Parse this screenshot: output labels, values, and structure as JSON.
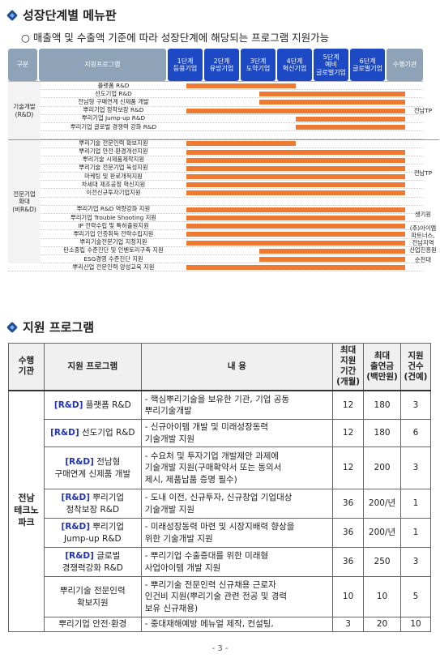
{
  "section1": {
    "title": "성장단계별 메뉴판",
    "subtitle": "○ 매출액 및 수출액 기준에 따라 성장단계에 해당되는 프로그램 지원가능"
  },
  "stage_table": {
    "header": {
      "group": "구분",
      "program": "지원프로그램",
      "stages": [
        "1단계\n등용기업",
        "2단계\n유망기업",
        "3단계\n도약기업",
        "4단계\n혁신기업",
        "5단계\n예비\n글로벌기업",
        "6단계\n글로벌기업"
      ],
      "org": "수행기관"
    },
    "groups": [
      {
        "label": "기술개발\n(R&D)",
        "start": 0,
        "span": 7
      },
      {
        "label": "전문기업\n확대\n(비R&D)",
        "start": 7,
        "span": 15
      }
    ],
    "orgs": [
      {
        "label": "전남TP",
        "start": 0,
        "span": 7
      },
      {
        "label": "전남TP",
        "start": 7,
        "span": 8
      },
      {
        "label": "생기원",
        "start": 15,
        "span": 2
      },
      {
        "label": "(주)아이엠\n파트너스,\n전남지역\n산업진흥원",
        "start": 17,
        "span": 4
      },
      {
        "label": "순천대",
        "start": 21,
        "span": 1
      }
    ],
    "rows": [
      {
        "name": "플랫폼 R&D",
        "from": 0,
        "to": 3
      },
      {
        "name": "선도기업 R&D",
        "from": 2,
        "to": 6
      },
      {
        "name": "전남형 구매연계 신제품 개발",
        "from": 2,
        "to": 6
      },
      {
        "name": "뿌리기업 정착보장 R&D",
        "from": 0,
        "to": 6
      },
      {
        "name": "뿌리기업 Jump-up R&D",
        "from": 3,
        "to": 6
      },
      {
        "name": "뿌리기업 글로벌 경쟁력 강화 R&D",
        "from": 3,
        "to": 6
      },
      {
        "name": "",
        "from": null,
        "to": null
      },
      {
        "name": "뿌리기술 전문인력 확보지원",
        "from": 0,
        "to": 3
      },
      {
        "name": "뿌리기업 안전·환경개선지원",
        "from": 0,
        "to": 6
      },
      {
        "name": "뿌리기술 시제품제작지원",
        "from": 0,
        "to": 6
      },
      {
        "name": "뿌리기술 전문기업 육성지원",
        "from": 0,
        "to": 6
      },
      {
        "name": "마케팅 및 판로개척지원",
        "from": 0,
        "to": 6
      },
      {
        "name": "차세대 제조공정 혁신지원",
        "from": 0,
        "to": 6
      },
      {
        "name": "이전신규투자기업지원",
        "from": 0,
        "to": 6
      },
      {
        "name": "",
        "from": null,
        "to": null
      },
      {
        "name": "뿌리기업 R&D 역량강화 지원",
        "from": 0,
        "to": 6
      },
      {
        "name": "뿌리기업 Trouble Shooting 지원",
        "from": 0,
        "to": 6
      },
      {
        "name": "IP 전략수립 및 특허출원지원",
        "from": 0,
        "to": 6
      },
      {
        "name": "뿌리기업 인증취득 전략수립지원",
        "from": 0,
        "to": 6
      },
      {
        "name": "뿌리기술전문기업 지정지원",
        "from": 0,
        "to": 6
      },
      {
        "name": "탄소중립 수준진단 및 인벤토리구축 지원",
        "from": 2,
        "to": 6
      },
      {
        "name": "ESG경영 수준진단 지원",
        "from": 2,
        "to": 6
      },
      {
        "name": "뿌리산업 전문인력 양성교육 지원",
        "from": 0,
        "to": 6
      }
    ]
  },
  "section2": {
    "title": "지원 프로그램"
  },
  "program_table": {
    "headers": [
      "수행\n기관",
      "지원 프로그램",
      "내 용",
      "최대\n지원\n기간\n(개월)",
      "최대\n출연금\n(백만원)",
      "지원\n건수\n(건예)"
    ],
    "org": "전남\n테크노\n파크",
    "rows": [
      {
        "tag": "[R&D]",
        "name": " 플랫폼 R&D",
        "content": "- 핵심뿌리기술을 보유한 기관, 기업 공동\n  뿌리기술개발",
        "period": "12",
        "fund": "180",
        "count": "3"
      },
      {
        "tag": "[R&D]",
        "name": " 선도기업 R&D",
        "content": "- 신규아이템 개발 및 미래성장동력\n  기술개발 지원",
        "period": "12",
        "fund": "180",
        "count": "6"
      },
      {
        "tag": "[R&D]",
        "name": " 전남형\n구매연계 신제품 개발",
        "content": "- 수요처 및 투자기업 개발제안 과제에\n  기술개발 지원(구매확약서 또는 동의서\n  제시, 제품납품 증명 필수)",
        "period": "12",
        "fund": "200",
        "count": "3"
      },
      {
        "tag": "[R&D]",
        "name": " 뿌리기업\n정착보장 R&D",
        "content": "- 도내 이전, 신규투자, 신규창업 기업대상\n  기술개발 지원",
        "period": "36",
        "fund": "200/년",
        "count": "1"
      },
      {
        "tag": "[R&D]",
        "name": " 뿌리기업\nJump-up R&D",
        "content": "- 미래성장동력 마련 및 시장지배력 향상을\n  위한 기술개발 지원",
        "period": "36",
        "fund": "200/년",
        "count": "1"
      },
      {
        "tag": "[R&D]",
        "name": " 글로벌\n경쟁력강화 R&D",
        "content": "- 뿌리기업 수출증대를 위한 미래형\n  사업아이템 개발 지원",
        "period": "36",
        "fund": "250",
        "count": "3"
      },
      {
        "tag": "",
        "name": "뿌리기술 전문인력\n확보지원",
        "content": "- 뿌리기술 전문인력 신규채용 근로자\n  인건비 지원(뿌리기술 관련 전공 및 경력\n  보유 신규채용)",
        "period": "10",
        "fund": "10",
        "count": "5"
      },
      {
        "tag": "",
        "name": "뿌리기업 안전·환경",
        "content": "- 중대재해예방 메뉴얼 제작, 컨설팅,",
        "period": "3",
        "fund": "20",
        "count": "10"
      }
    ]
  },
  "page_number": "- 3 -",
  "colors": {
    "bar": "#ee7a32",
    "stage_header": "#1d49c5",
    "grey_header": "#8fa3b8",
    "rnd_tag": "#2233bb"
  }
}
